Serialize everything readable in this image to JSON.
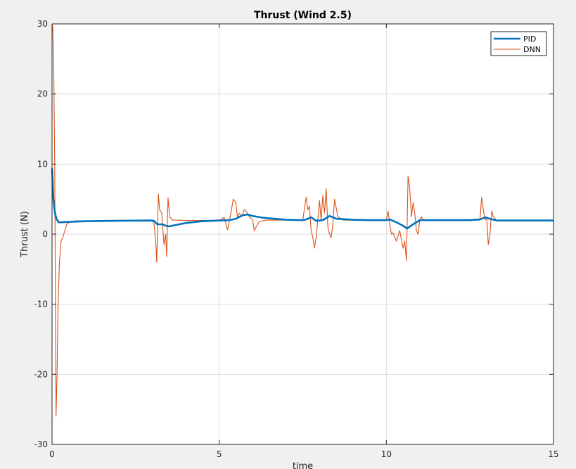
{
  "chart_data": {
    "type": "line",
    "title": "Thrust (Wind 2.5)",
    "xlabel": "time",
    "ylabel": "Thrust (N)",
    "xlim": [
      0,
      15
    ],
    "ylim": [
      -30,
      30
    ],
    "xticks": [
      0,
      5,
      10,
      15
    ],
    "yticks": [
      -30,
      -20,
      -10,
      0,
      10,
      20,
      30
    ],
    "grid": true,
    "legend_position": "top-right",
    "series": [
      {
        "name": "PID",
        "color": "#0072bd",
        "x": [
          0,
          0.04,
          0.08,
          0.13,
          0.2,
          0.3,
          0.5,
          1.0,
          2.0,
          3.0,
          3.05,
          3.15,
          3.3,
          3.4,
          3.5,
          4.0,
          4.5,
          5.0,
          5.3,
          5.5,
          5.7,
          5.85,
          6.0,
          6.3,
          7.0,
          7.5,
          7.6,
          7.75,
          7.9,
          8.1,
          8.3,
          8.5,
          9.0,
          9.5,
          10.0,
          10.1,
          10.3,
          10.5,
          10.62,
          10.8,
          11.0,
          11.5,
          12.0,
          12.5,
          12.8,
          12.95,
          13.1,
          13.3,
          14.0,
          15.0
        ],
        "y": [
          9.4,
          5.0,
          3.2,
          2.2,
          1.7,
          1.7,
          1.75,
          1.85,
          1.92,
          1.95,
          1.9,
          1.4,
          1.4,
          1.2,
          1.1,
          1.6,
          1.85,
          1.95,
          2.0,
          2.2,
          2.7,
          2.8,
          2.6,
          2.35,
          2.05,
          2.0,
          2.1,
          2.4,
          1.9,
          2.0,
          2.6,
          2.2,
          2.05,
          2.0,
          2.0,
          2.1,
          1.7,
          1.2,
          0.8,
          1.4,
          2.0,
          2.0,
          2.0,
          2.0,
          2.1,
          2.4,
          2.2,
          1.95,
          1.95,
          1.95
        ]
      },
      {
        "name": "DNN",
        "color": "#d95319",
        "x": [
          0,
          0.02,
          0.05,
          0.08,
          0.1,
          0.12,
          0.15,
          0.18,
          0.22,
          0.27,
          0.32,
          0.38,
          0.45,
          0.55,
          0.7,
          1.0,
          2.0,
          3.0,
          3.05,
          3.1,
          3.13,
          3.18,
          3.22,
          3.28,
          3.35,
          3.4,
          3.43,
          3.47,
          3.52,
          3.6,
          3.8,
          4.0,
          4.5,
          5.0,
          5.15,
          5.2,
          5.25,
          5.35,
          5.42,
          5.5,
          5.55,
          5.6,
          5.68,
          5.75,
          5.82,
          5.9,
          6.0,
          6.05,
          6.1,
          6.2,
          6.4,
          6.8,
          7.2,
          7.5,
          7.6,
          7.65,
          7.7,
          7.75,
          7.8,
          7.85,
          7.9,
          8.0,
          8.05,
          8.1,
          8.15,
          8.2,
          8.25,
          8.3,
          8.35,
          8.4,
          8.45,
          8.55,
          8.7,
          9.0,
          9.5,
          10.0,
          10.05,
          10.1,
          10.15,
          10.2,
          10.3,
          10.4,
          10.5,
          10.55,
          10.6,
          10.65,
          10.7,
          10.75,
          10.8,
          10.85,
          10.9,
          10.95,
          11.0,
          11.05,
          11.1,
          11.3,
          12.0,
          12.5,
          12.8,
          12.85,
          12.9,
          12.95,
          13.0,
          13.05,
          13.1,
          13.15,
          13.2,
          13.3,
          13.5,
          14.0,
          15.0
        ],
        "y": [
          30.0,
          29.5,
          24.0,
          10.0,
          -10.0,
          -26.0,
          -20.0,
          -10.0,
          -4.0,
          -1.0,
          -0.5,
          0.5,
          1.5,
          1.8,
          1.9,
          1.9,
          1.9,
          1.9,
          1.5,
          -1.0,
          -4.0,
          5.7,
          3.5,
          3.0,
          -1.5,
          0.0,
          -3.2,
          5.2,
          2.5,
          2.0,
          2.0,
          1.95,
          1.95,
          1.95,
          2.4,
          1.5,
          0.6,
          3.0,
          5.0,
          4.5,
          2.2,
          3.0,
          2.5,
          3.5,
          3.2,
          2.5,
          2.0,
          0.5,
          1.0,
          1.8,
          2.0,
          2.0,
          2.0,
          2.0,
          5.3,
          3.5,
          4.0,
          0.5,
          -0.5,
          -2.0,
          -0.5,
          4.8,
          2.0,
          5.5,
          3.0,
          6.5,
          1.0,
          0.0,
          -0.5,
          1.5,
          5.0,
          2.5,
          2.0,
          2.0,
          2.0,
          2.0,
          3.3,
          1.5,
          0.0,
          0.2,
          -1.0,
          0.5,
          -2.0,
          -1.0,
          -3.8,
          8.3,
          6.5,
          2.5,
          4.5,
          3.0,
          0.5,
          0.0,
          2.0,
          2.5,
          2.0,
          2.0,
          2.0,
          2.0,
          2.0,
          5.3,
          3.5,
          2.0,
          2.5,
          -1.5,
          0.0,
          3.3,
          2.5,
          2.0,
          2.0,
          2.0,
          2.0
        ]
      }
    ]
  }
}
